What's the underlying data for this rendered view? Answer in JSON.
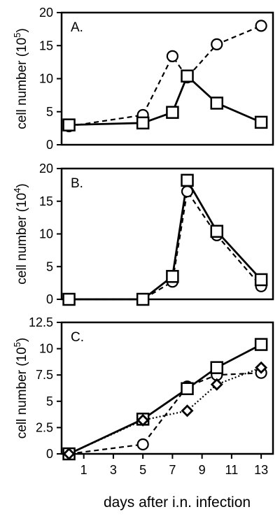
{
  "chart_data": [
    {
      "type": "line",
      "panel_label": "A.",
      "ylabel": "cell number (10",
      "ylabel_exp": "5",
      "ylabel_close": ")",
      "ylim": [
        0,
        20
      ],
      "yticks": [
        0,
        5,
        10,
        15,
        20
      ],
      "ytick_labels": [
        "0",
        "5",
        "10",
        "15",
        "20"
      ],
      "xlim": [
        -0.5,
        13.8
      ],
      "show_x_ticks": false,
      "series": [
        {
          "marker": "circle",
          "line": "dashed",
          "x": [
            0,
            5,
            7,
            8,
            10,
            13
          ],
          "y": [
            2.8,
            4.5,
            13.4,
            10.2,
            15.2,
            18.0
          ]
        },
        {
          "marker": "square",
          "line": "solid",
          "x": [
            0,
            5,
            7,
            8,
            10,
            13
          ],
          "y": [
            3.0,
            3.3,
            4.9,
            10.4,
            6.3,
            3.4
          ]
        }
      ]
    },
    {
      "type": "line",
      "panel_label": "B.",
      "ylabel": "cell number (10",
      "ylabel_exp": "4",
      "ylabel_close": ")",
      "ylim": [
        0,
        20
      ],
      "yticks": [
        0,
        5,
        10,
        15,
        20
      ],
      "ytick_labels": [
        "0",
        "5",
        "10",
        "15",
        "20"
      ],
      "xlim": [
        -0.5,
        13.8
      ],
      "show_x_ticks": false,
      "series": [
        {
          "marker": "circle",
          "line": "dashed",
          "x": [
            0,
            5,
            7,
            8,
            10,
            13
          ],
          "y": [
            0,
            0,
            2.7,
            16.5,
            9.8,
            2.0
          ]
        },
        {
          "marker": "square",
          "line": "solid",
          "x": [
            0,
            5,
            7,
            8,
            10,
            13
          ],
          "y": [
            0,
            0,
            3.5,
            18.2,
            10.4,
            3.0
          ]
        }
      ]
    },
    {
      "type": "line",
      "panel_label": "C.",
      "ylabel": "cell number (10",
      "ylabel_exp": "5",
      "ylabel_close": ")",
      "ylim": [
        0,
        12.5
      ],
      "yticks": [
        0,
        2.5,
        5,
        7.5,
        10,
        12.5
      ],
      "ytick_labels": [
        "0",
        "2.5",
        "5",
        "7.5",
        "10",
        "12.5"
      ],
      "xlim": [
        -0.5,
        13.8
      ],
      "show_x_ticks": true,
      "xticks": [
        1,
        3,
        5,
        7,
        9,
        11,
        13
      ],
      "xtick_labels": [
        "1",
        "3",
        "5",
        "7",
        "9",
        "11",
        "13"
      ],
      "xlabel": "days after i.n. infection",
      "series": [
        {
          "marker": "circle",
          "line": "dashed",
          "x": [
            0,
            5,
            8,
            10,
            13
          ],
          "y": [
            0,
            0.9,
            6.4,
            7.5,
            7.7
          ]
        },
        {
          "marker": "square",
          "line": "solid",
          "x": [
            0,
            5,
            8,
            10,
            13
          ],
          "y": [
            0,
            3.3,
            6.2,
            8.2,
            10.4
          ]
        },
        {
          "marker": "diamond",
          "line": "dotted",
          "x": [
            0,
            5,
            8,
            10,
            13
          ],
          "y": [
            0,
            3.2,
            4.1,
            6.6,
            8.2
          ]
        }
      ]
    }
  ]
}
